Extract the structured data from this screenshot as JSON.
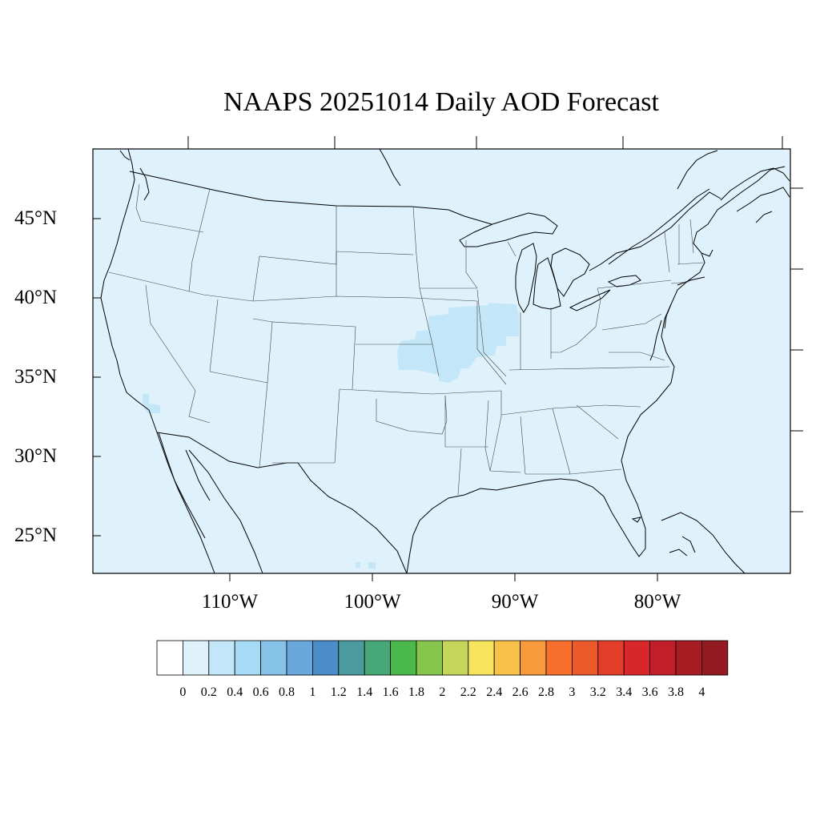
{
  "title": "NAAPS 20251014 Daily AOD Forecast",
  "map": {
    "background_color": "#dff2fb",
    "plume_color": "#c3e6f8",
    "border_color": "#000000",
    "lat_labels": [
      "45°N",
      "40°N",
      "35°N",
      "30°N",
      "25°N"
    ],
    "lon_labels": [
      "110°W",
      "100°W",
      "90°W",
      "80°W"
    ]
  },
  "colorbar": {
    "labels": [
      "0",
      "0.2",
      "0.4",
      "0.6",
      "0.8",
      "1",
      "1.2",
      "1.4",
      "1.6",
      "1.8",
      "2",
      "2.2",
      "2.4",
      "2.6",
      "2.8",
      "3",
      "3.2",
      "3.4",
      "3.6",
      "3.8",
      "4"
    ],
    "colors": [
      "#ffffff",
      "#dff2fb",
      "#c3e6f8",
      "#a6dbf5",
      "#86c1e8",
      "#6aa8dc",
      "#4a8dc9",
      "#4a9a9e",
      "#46a877",
      "#4ab84a",
      "#86c64c",
      "#c4d65a",
      "#f6e55c",
      "#f8c24a",
      "#f89a3c",
      "#f76f2c",
      "#ec5a2c",
      "#e23e2a",
      "#d8262a",
      "#c01e28",
      "#a81c24",
      "#921a20"
    ]
  }
}
